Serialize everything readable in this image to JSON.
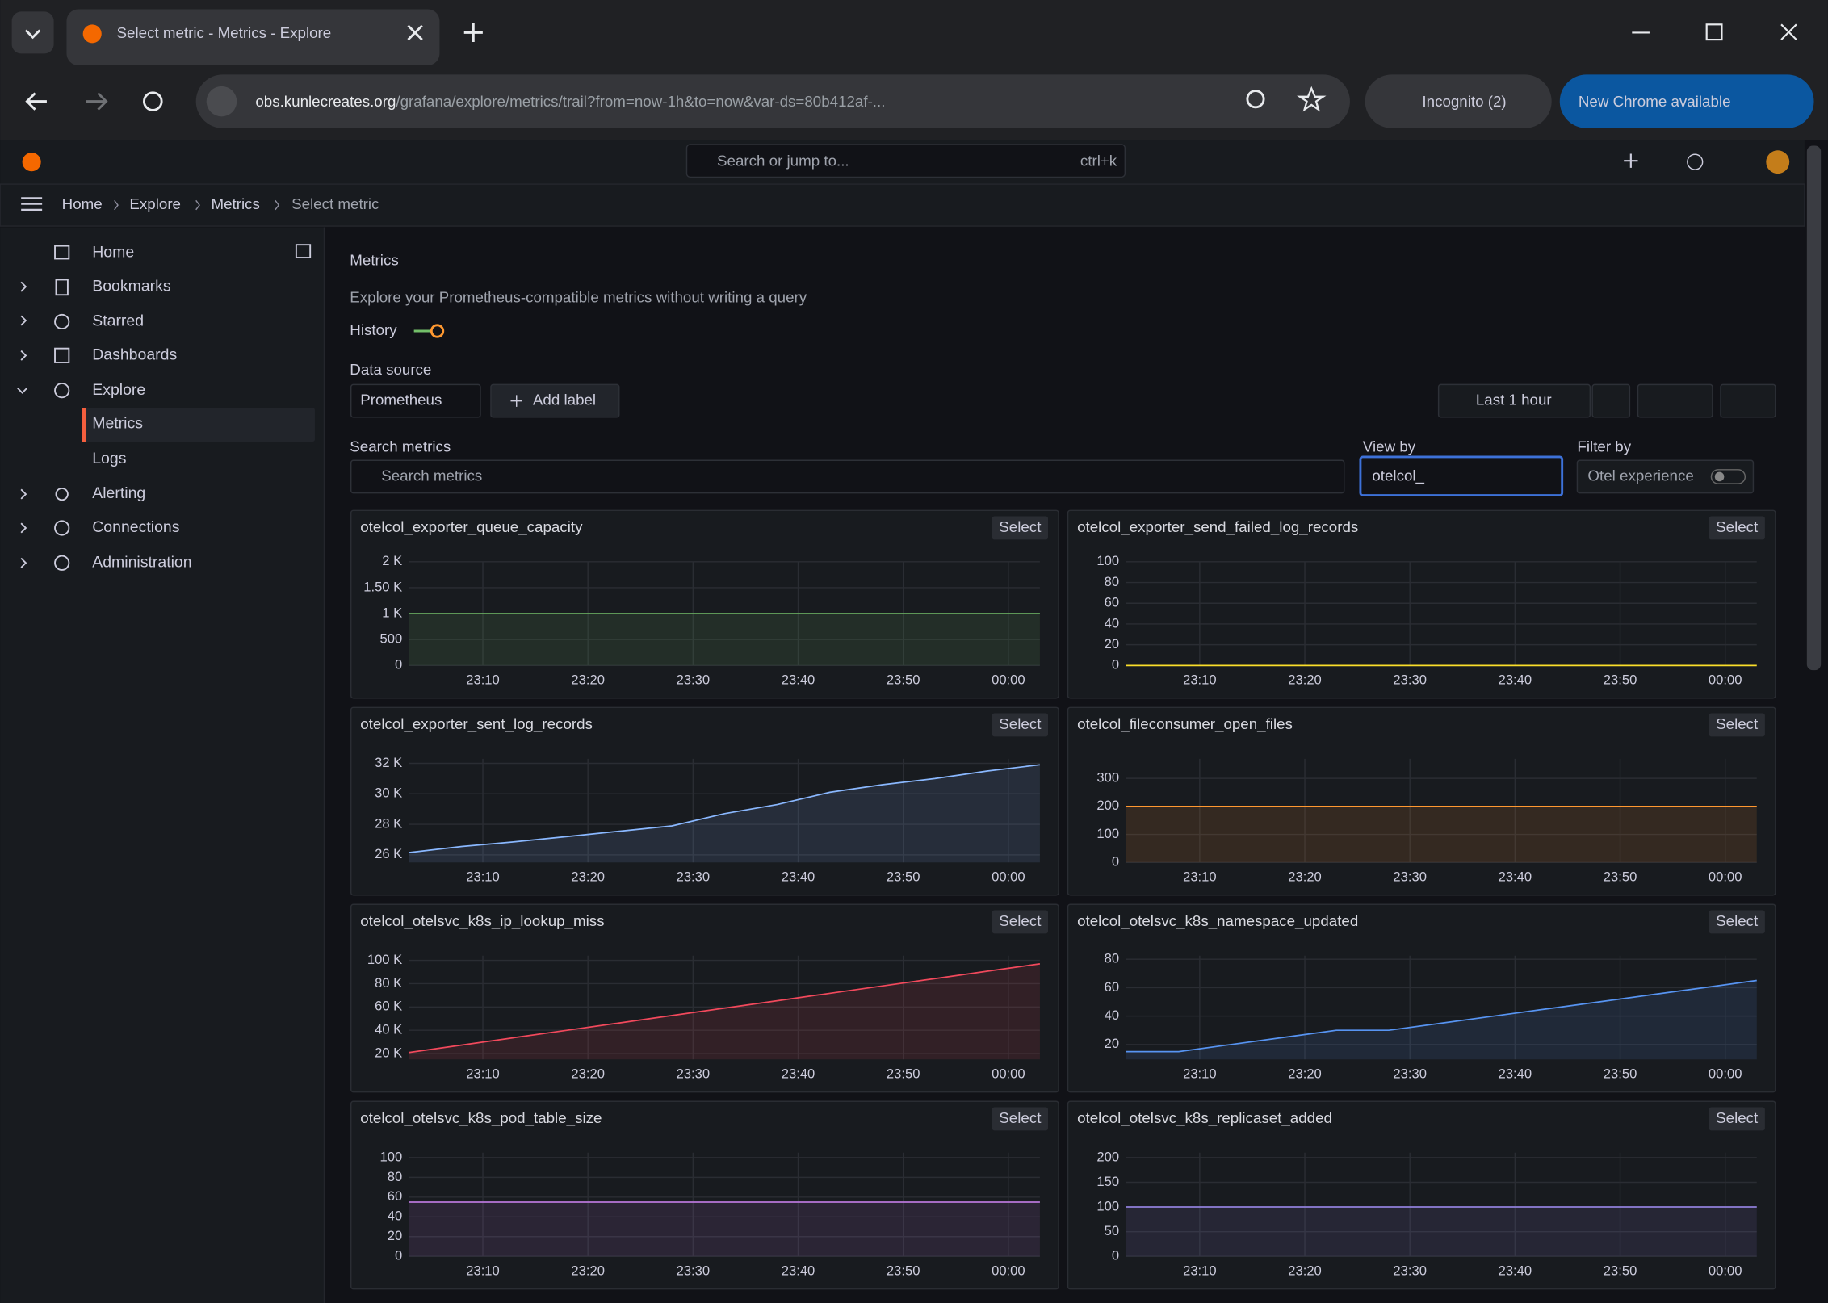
{
  "browser": {
    "tab_title": "Select metric - Metrics - Explore",
    "url_host": "obs.kunlecreates.org",
    "url_path": "/grafana/explore/metrics/trail?from=now-1h&to=now&var-ds=80b412af-...",
    "incognito": "Incognito (2)",
    "update": "New Chrome available"
  },
  "header": {
    "search": "Search or jump to...",
    "shortcut": "ctrl+k",
    "breadcrumbs": [
      "Home",
      "Explore",
      "Metrics",
      "Select metric"
    ]
  },
  "sidebar": {
    "items": [
      "Home",
      "Bookmarks",
      "Starred",
      "Dashboards",
      "Explore",
      "Metrics",
      "Logs",
      "Alerting",
      "Connections",
      "Administration"
    ]
  },
  "page": {
    "title": "Metrics",
    "subtitle": "Explore your Prometheus-compatible metrics without writing a query",
    "history": "History",
    "data_source_label": "Data source",
    "data_source": "Prometheus",
    "add_label": "Add label",
    "time_range": "Last 1 hour",
    "search_label": "Search metrics",
    "search_placeholder": "Search metrics",
    "view_by_label": "View by",
    "view_by": "otelcol_",
    "filter_by_label": "Filter by",
    "otel_experience": "Otel experience"
  },
  "chart_data": [
    {
      "type": "line",
      "title": "otelcol_exporter_queue_capacity",
      "button": "Select",
      "color": "#73bf69",
      "x": [
        "23:03",
        "23:08",
        "23:13",
        "23:18",
        "23:23",
        "23:28",
        "23:33",
        "23:38",
        "23:43",
        "23:48",
        "23:53",
        "23:58",
        "00:03"
      ],
      "values": [
        1000,
        1000,
        1000,
        1000,
        1000,
        1000,
        1000,
        1000,
        1000,
        1000,
        1000,
        1000,
        1000
      ],
      "xlim": [
        "23:03",
        "00:03"
      ],
      "xticks": [
        "23:10",
        "23:20",
        "23:30",
        "23:40",
        "23:50",
        "00:00"
      ],
      "ylim": [
        0,
        2000
      ],
      "yticks": [
        0,
        500,
        {
          "value": 1000,
          "label": "1 K"
        },
        {
          "value": 1500,
          "label": "1.50 K"
        },
        {
          "value": 2000,
          "label": "2 K"
        }
      ]
    },
    {
      "type": "line",
      "title": "otelcol_exporter_send_failed_log_records",
      "button": "Select",
      "color": "#fade2a",
      "x": [
        "23:03",
        "23:08",
        "23:13",
        "23:18",
        "23:23",
        "23:28",
        "23:33",
        "23:38",
        "23:43",
        "23:48",
        "23:53",
        "23:58",
        "00:03"
      ],
      "values": [
        0,
        0,
        0,
        0,
        0,
        0,
        0,
        0,
        0,
        0,
        0,
        0,
        0
      ],
      "xlim": [
        "23:03",
        "00:03"
      ],
      "xticks": [
        "23:10",
        "23:20",
        "23:30",
        "23:40",
        "23:50",
        "00:00"
      ],
      "ylim": [
        0,
        100
      ],
      "yticks": [
        0,
        20,
        40,
        60,
        80,
        100
      ]
    },
    {
      "type": "line",
      "title": "otelcol_exporter_sent_log_records",
      "button": "Select",
      "color": "#8ab8ff",
      "x": [
        "23:03",
        "23:08",
        "23:13",
        "23:18",
        "23:23",
        "23:28",
        "23:33",
        "23:38",
        "23:43",
        "23:48",
        "23:53",
        "23:58",
        "00:03"
      ],
      "values": [
        26150,
        26550,
        26850,
        27200,
        27550,
        27900,
        28700,
        29300,
        30100,
        30600,
        31000,
        31500,
        31900
      ],
      "xlim": [
        "23:03",
        "00:03"
      ],
      "xticks": [
        "23:10",
        "23:20",
        "23:30",
        "23:40",
        "23:50",
        "00:00"
      ],
      "ylim": [
        25500,
        32300
      ],
      "yticks": [
        {
          "value": 26000,
          "label": "26 K"
        },
        {
          "value": 28000,
          "label": "28 K"
        },
        {
          "value": 30000,
          "label": "30 K"
        },
        {
          "value": 32000,
          "label": "32 K"
        }
      ]
    },
    {
      "type": "line",
      "title": "otelcol_fileconsumer_open_files",
      "button": "Select",
      "color": "#ff9830",
      "x": [
        "23:03",
        "23:08",
        "23:13",
        "23:18",
        "23:23",
        "23:28",
        "23:33",
        "23:38",
        "23:43",
        "23:48",
        "23:53",
        "23:58",
        "00:03"
      ],
      "values": [
        200,
        200,
        200,
        200,
        200,
        200,
        200,
        200,
        200,
        200,
        200,
        200,
        200
      ],
      "xlim": [
        "23:03",
        "00:03"
      ],
      "xticks": [
        "23:10",
        "23:20",
        "23:30",
        "23:40",
        "23:50",
        "00:00"
      ],
      "ylim": [
        0,
        370
      ],
      "yticks": [
        0,
        100,
        200,
        300
      ]
    },
    {
      "type": "line",
      "title": "otelcol_otelsvc_k8s_ip_lookup_miss",
      "button": "Select",
      "color": "#f2495c",
      "x": [
        "23:03",
        "23:08",
        "23:13",
        "23:18",
        "23:23",
        "23:28",
        "23:33",
        "23:38",
        "23:43",
        "23:48",
        "23:53",
        "23:58",
        "00:03"
      ],
      "values": [
        21000,
        27300,
        33700,
        40000,
        46300,
        52700,
        59000,
        65300,
        71700,
        78000,
        84300,
        90700,
        97000
      ],
      "xlim": [
        "23:03",
        "00:03"
      ],
      "xticks": [
        "23:10",
        "23:20",
        "23:30",
        "23:40",
        "23:50",
        "00:00"
      ],
      "ylim": [
        15000,
        104000
      ],
      "yticks": [
        {
          "value": 20000,
          "label": "20 K"
        },
        {
          "value": 40000,
          "label": "40 K"
        },
        {
          "value": 60000,
          "label": "60 K"
        },
        {
          "value": 80000,
          "label": "80 K"
        },
        {
          "value": 100000,
          "label": "100 K"
        }
      ]
    },
    {
      "type": "line",
      "title": "otelcol_otelsvc_k8s_namespace_updated",
      "button": "Select",
      "color": "#5794f2",
      "x": [
        "23:03",
        "23:08",
        "23:13",
        "23:18",
        "23:23",
        "23:28",
        "23:33",
        "23:38",
        "23:43",
        "23:48",
        "23:53",
        "23:58",
        "00:03"
      ],
      "values": [
        15,
        15,
        20,
        25,
        30,
        30,
        35,
        40,
        45,
        50,
        55,
        60,
        65
      ],
      "xlim": [
        "23:03",
        "00:03"
      ],
      "xticks": [
        "23:10",
        "23:20",
        "23:30",
        "23:40",
        "23:50",
        "00:00"
      ],
      "ylim": [
        9.5,
        82.5
      ],
      "yticks": [
        20,
        40,
        60,
        80
      ]
    },
    {
      "type": "line",
      "title": "otelcol_otelsvc_k8s_pod_table_size",
      "button": "Select",
      "color": "#b877d9",
      "x": [
        "23:03",
        "23:08",
        "23:13",
        "23:18",
        "23:23",
        "23:28",
        "23:33",
        "23:38",
        "23:43",
        "23:48",
        "23:53",
        "23:58",
        "00:03"
      ],
      "values": [
        55,
        55,
        55,
        55,
        55,
        55,
        55,
        55,
        55,
        55,
        55,
        55,
        55
      ],
      "xlim": [
        "23:03",
        "00:03"
      ],
      "xticks": [
        "23:10",
        "23:20",
        "23:30",
        "23:40",
        "23:50",
        "00:00"
      ],
      "ylim": [
        0,
        105
      ],
      "yticks": [
        0,
        20,
        40,
        60,
        80,
        100
      ]
    },
    {
      "type": "line",
      "title": "otelcol_otelsvc_k8s_replicaset_added",
      "button": "Select",
      "color": "#8f7fd9",
      "x": [
        "23:03",
        "23:08",
        "23:13",
        "23:18",
        "23:23",
        "23:28",
        "23:33",
        "23:38",
        "23:43",
        "23:48",
        "23:53",
        "23:58",
        "00:03"
      ],
      "values": [
        100,
        100,
        100,
        100,
        100,
        100,
        100,
        100,
        100,
        100,
        100,
        100,
        100
      ],
      "xlim": [
        "23:03",
        "00:03"
      ],
      "xticks": [
        "23:10",
        "23:20",
        "23:30",
        "23:40",
        "23:50",
        "00:00"
      ],
      "ylim": [
        0,
        210
      ],
      "yticks": [
        0,
        50,
        100,
        150,
        200
      ]
    }
  ]
}
